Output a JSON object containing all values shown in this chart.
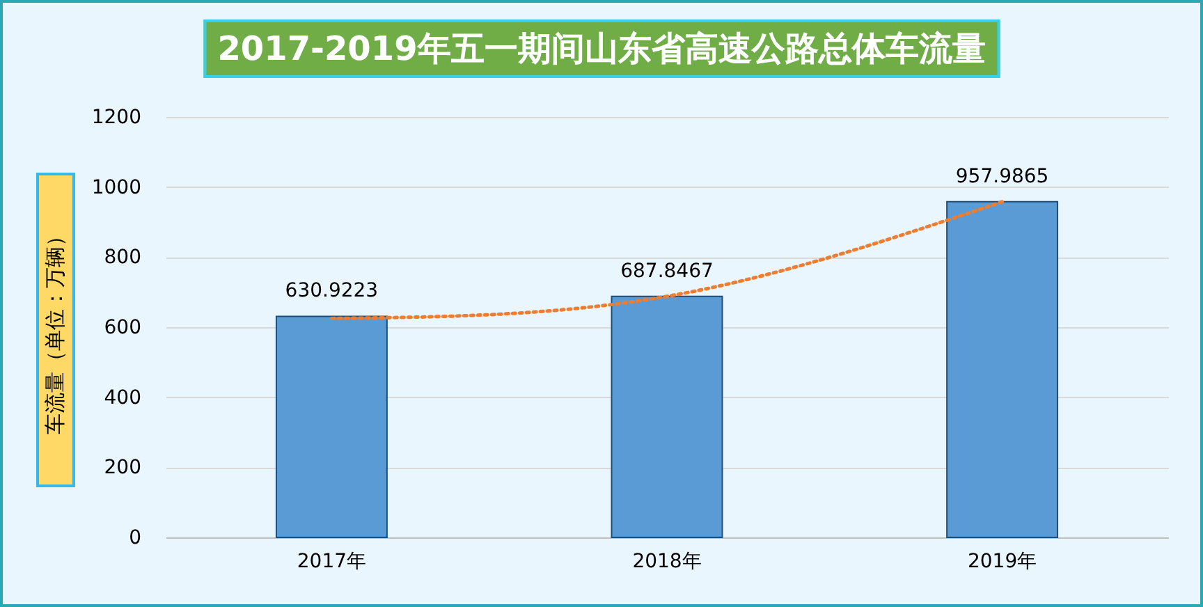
{
  "chart_data": {
    "type": "bar",
    "title": "2017-2019年五一期间山东省高速公路总体车流量",
    "ylabel": "车流量（单位：万辆）",
    "categories": [
      "2017年",
      "2018年",
      "2019年"
    ],
    "series": [
      {
        "color": "#5b9bd5",
        "values": [
          630.9223,
          687.8467,
          957.9865
        ]
      },
      {
        "type": "line",
        "color": "#ed7d31",
        "line_style": "dotted",
        "values": [
          625,
          688,
          958
        ],
        "value_labels": [
          null,
          null,
          null
        ]
      }
    ],
    "ylim": [
      0,
      1200
    ],
    "yticks": [
      0,
      200,
      400,
      600,
      800,
      1000,
      1200
    ],
    "grid": "y",
    "data_labels": true
  }
}
